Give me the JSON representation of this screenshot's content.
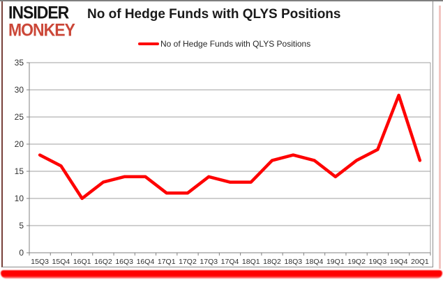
{
  "brand": {
    "line1": "INSIDER",
    "line2": "MONKEY"
  },
  "header": {
    "title": "No of Hedge Funds with QLYS Positions"
  },
  "legend": {
    "label": "No of Hedge Funds with QLYS Positions"
  },
  "colors": {
    "line": "#fe0000",
    "brand_black": "#141414",
    "brand_red": "#cb4738",
    "axis": "#808080",
    "gridline": "#9f9f9f",
    "tick_text": "#303030",
    "border_gray": "#8c8c8c",
    "border_red": "#ff0000",
    "border_pink": "#f2c5c1"
  },
  "chart_data": {
    "type": "line",
    "title": "No of Hedge Funds with QLYS Positions",
    "xlabel": "",
    "ylabel": "",
    "categories": [
      "15Q3",
      "15Q4",
      "16Q1",
      "16Q2",
      "16Q3",
      "16Q4",
      "17Q1",
      "17Q2",
      "17Q3",
      "17Q4",
      "18Q1",
      "18Q2",
      "18Q3",
      "18Q4",
      "19Q1",
      "19Q2",
      "19Q3",
      "19Q4",
      "20Q1"
    ],
    "series": [
      {
        "name": "No of Hedge Funds with QLYS Positions",
        "values": [
          18,
          16,
          10,
          13,
          14,
          14,
          11,
          11,
          14,
          13,
          13,
          17,
          18,
          17,
          14,
          17,
          19,
          29,
          17
        ]
      }
    ],
    "ylim": [
      0,
      35
    ],
    "yticks": [
      0,
      5,
      10,
      15,
      20,
      25,
      30,
      35
    ],
    "grid": true,
    "legend_position": "top"
  }
}
